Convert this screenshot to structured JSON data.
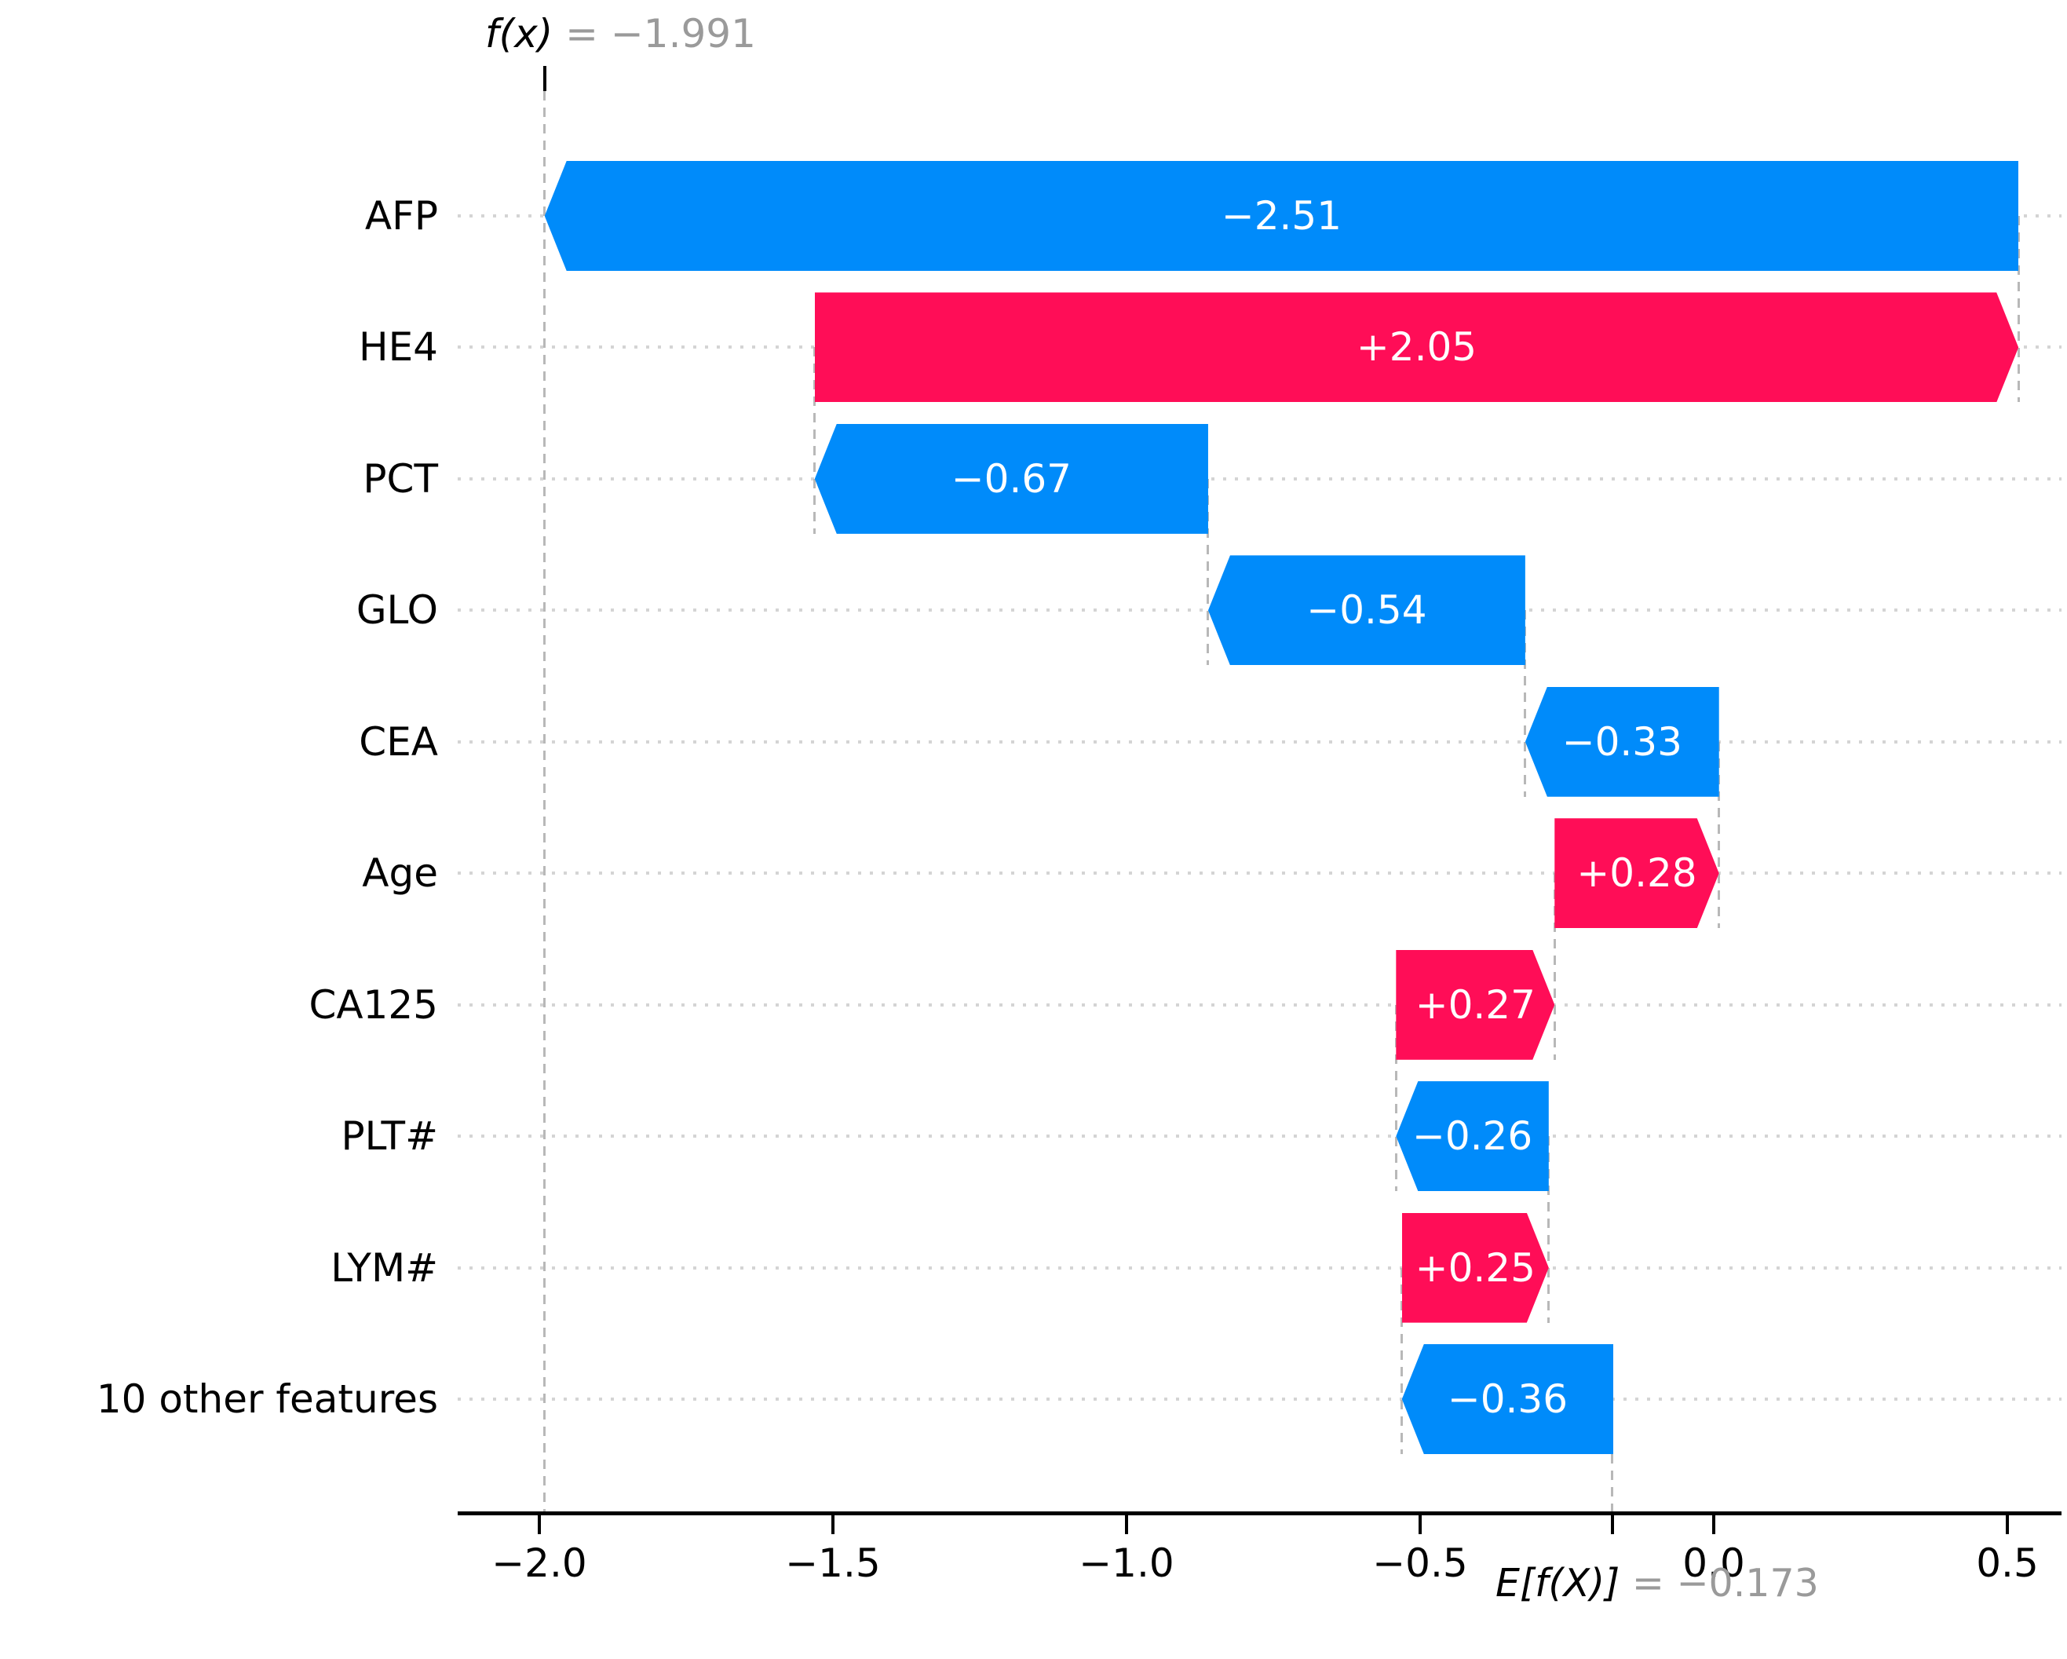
{
  "chart_data": {
    "type": "bar",
    "subtype": "shap_waterfall",
    "title": {
      "prefix": "f(x)",
      "equals": " = −1.991",
      "fx_numeric": -1.991
    },
    "base": {
      "prefix": "E[f(X)]",
      "equals": " = −0.173",
      "numeric": -0.173
    },
    "features": [
      {
        "label": "AFP",
        "value": -2.51,
        "display": "−2.51"
      },
      {
        "label": "HE4",
        "value": 2.05,
        "display": "+2.05"
      },
      {
        "label": "PCT",
        "value": -0.67,
        "display": "−0.67"
      },
      {
        "label": "GLO",
        "value": -0.54,
        "display": "−0.54"
      },
      {
        "label": "CEA",
        "value": -0.33,
        "display": "−0.33"
      },
      {
        "label": "Age",
        "value": 0.28,
        "display": "+0.28"
      },
      {
        "label": "CA125",
        "value": 0.27,
        "display": "+0.27"
      },
      {
        "label": "PLT#",
        "value": -0.26,
        "display": "−0.26"
      },
      {
        "label": "LYM#",
        "value": 0.25,
        "display": "+0.25"
      },
      {
        "label": "10 other features",
        "value": -0.36,
        "display": "−0.36"
      }
    ],
    "x_axis": {
      "ticks": [
        {
          "label": "−2.0",
          "value": -2.0
        },
        {
          "label": "−1.5",
          "value": -1.5
        },
        {
          "label": "−1.0",
          "value": -1.0
        },
        {
          "label": "−0.5",
          "value": -0.5
        },
        {
          "label": "0.0",
          "value": 0.0
        },
        {
          "label": "0.5",
          "value": 0.5
        }
      ],
      "range": [
        -2.139,
        0.592
      ],
      "grid": "off",
      "legend": "none"
    },
    "colors": {
      "positive": "#ff0d57",
      "negative": "#008bfa",
      "dashed_line": "#b8b8b8",
      "leader_dots": "#d4d4d4",
      "muted_text": "#9a9a9a",
      "text": "#000000",
      "axis": "#000000",
      "bar_value_text": "#ffffff"
    }
  }
}
